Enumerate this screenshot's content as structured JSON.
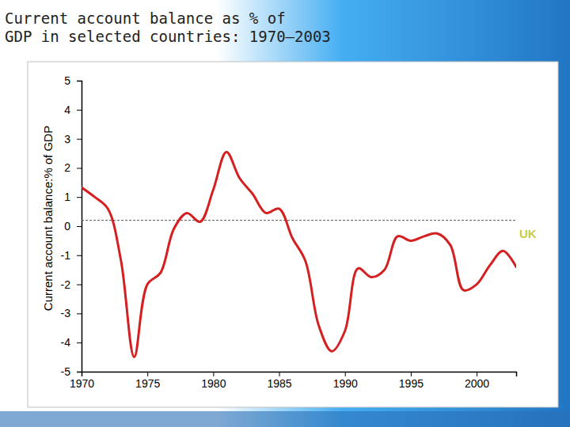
{
  "chart_data": {
    "type": "line",
    "title": "Current account balance as % of\nGDP in selected countries: 1970–2003",
    "y_label": "Current account balance:% of GDP",
    "x": [
      1970,
      1971,
      1972,
      1973,
      1974,
      1975,
      1976,
      1977,
      1978,
      1979,
      1980,
      1981,
      1982,
      1983,
      1984,
      1985,
      1986,
      1987,
      1988,
      1989,
      1990,
      1991,
      1992,
      1993,
      1994,
      1995,
      1996,
      1997,
      1998,
      1999,
      2000,
      2001,
      2002,
      2003
    ],
    "series": [
      {
        "name": "UK",
        "color": "#d42020",
        "values": [
          1.33,
          1.0,
          0.6,
          -1.2,
          -4.5,
          -2.0,
          -1.6,
          -0.1,
          0.45,
          0.15,
          1.25,
          2.55,
          1.65,
          1.1,
          0.45,
          0.6,
          -0.4,
          -1.2,
          -3.4,
          -4.3,
          -3.6,
          -1.45,
          -1.75,
          -1.5,
          -0.35,
          -0.5,
          -0.35,
          -0.25,
          -0.65,
          -2.2,
          -2.0,
          -1.35,
          -0.85,
          -1.4
        ]
      }
    ],
    "reference_line": 0.2,
    "xlim": [
      1970,
      2003
    ],
    "xticks": [
      1970,
      1975,
      1980,
      1985,
      1990,
      1995,
      2000
    ],
    "ylim": [
      -5,
      5
    ],
    "yticks": [
      -5,
      -4,
      -3,
      -2,
      -1,
      0,
      1,
      2,
      3,
      4,
      5
    ],
    "grid": false
  }
}
